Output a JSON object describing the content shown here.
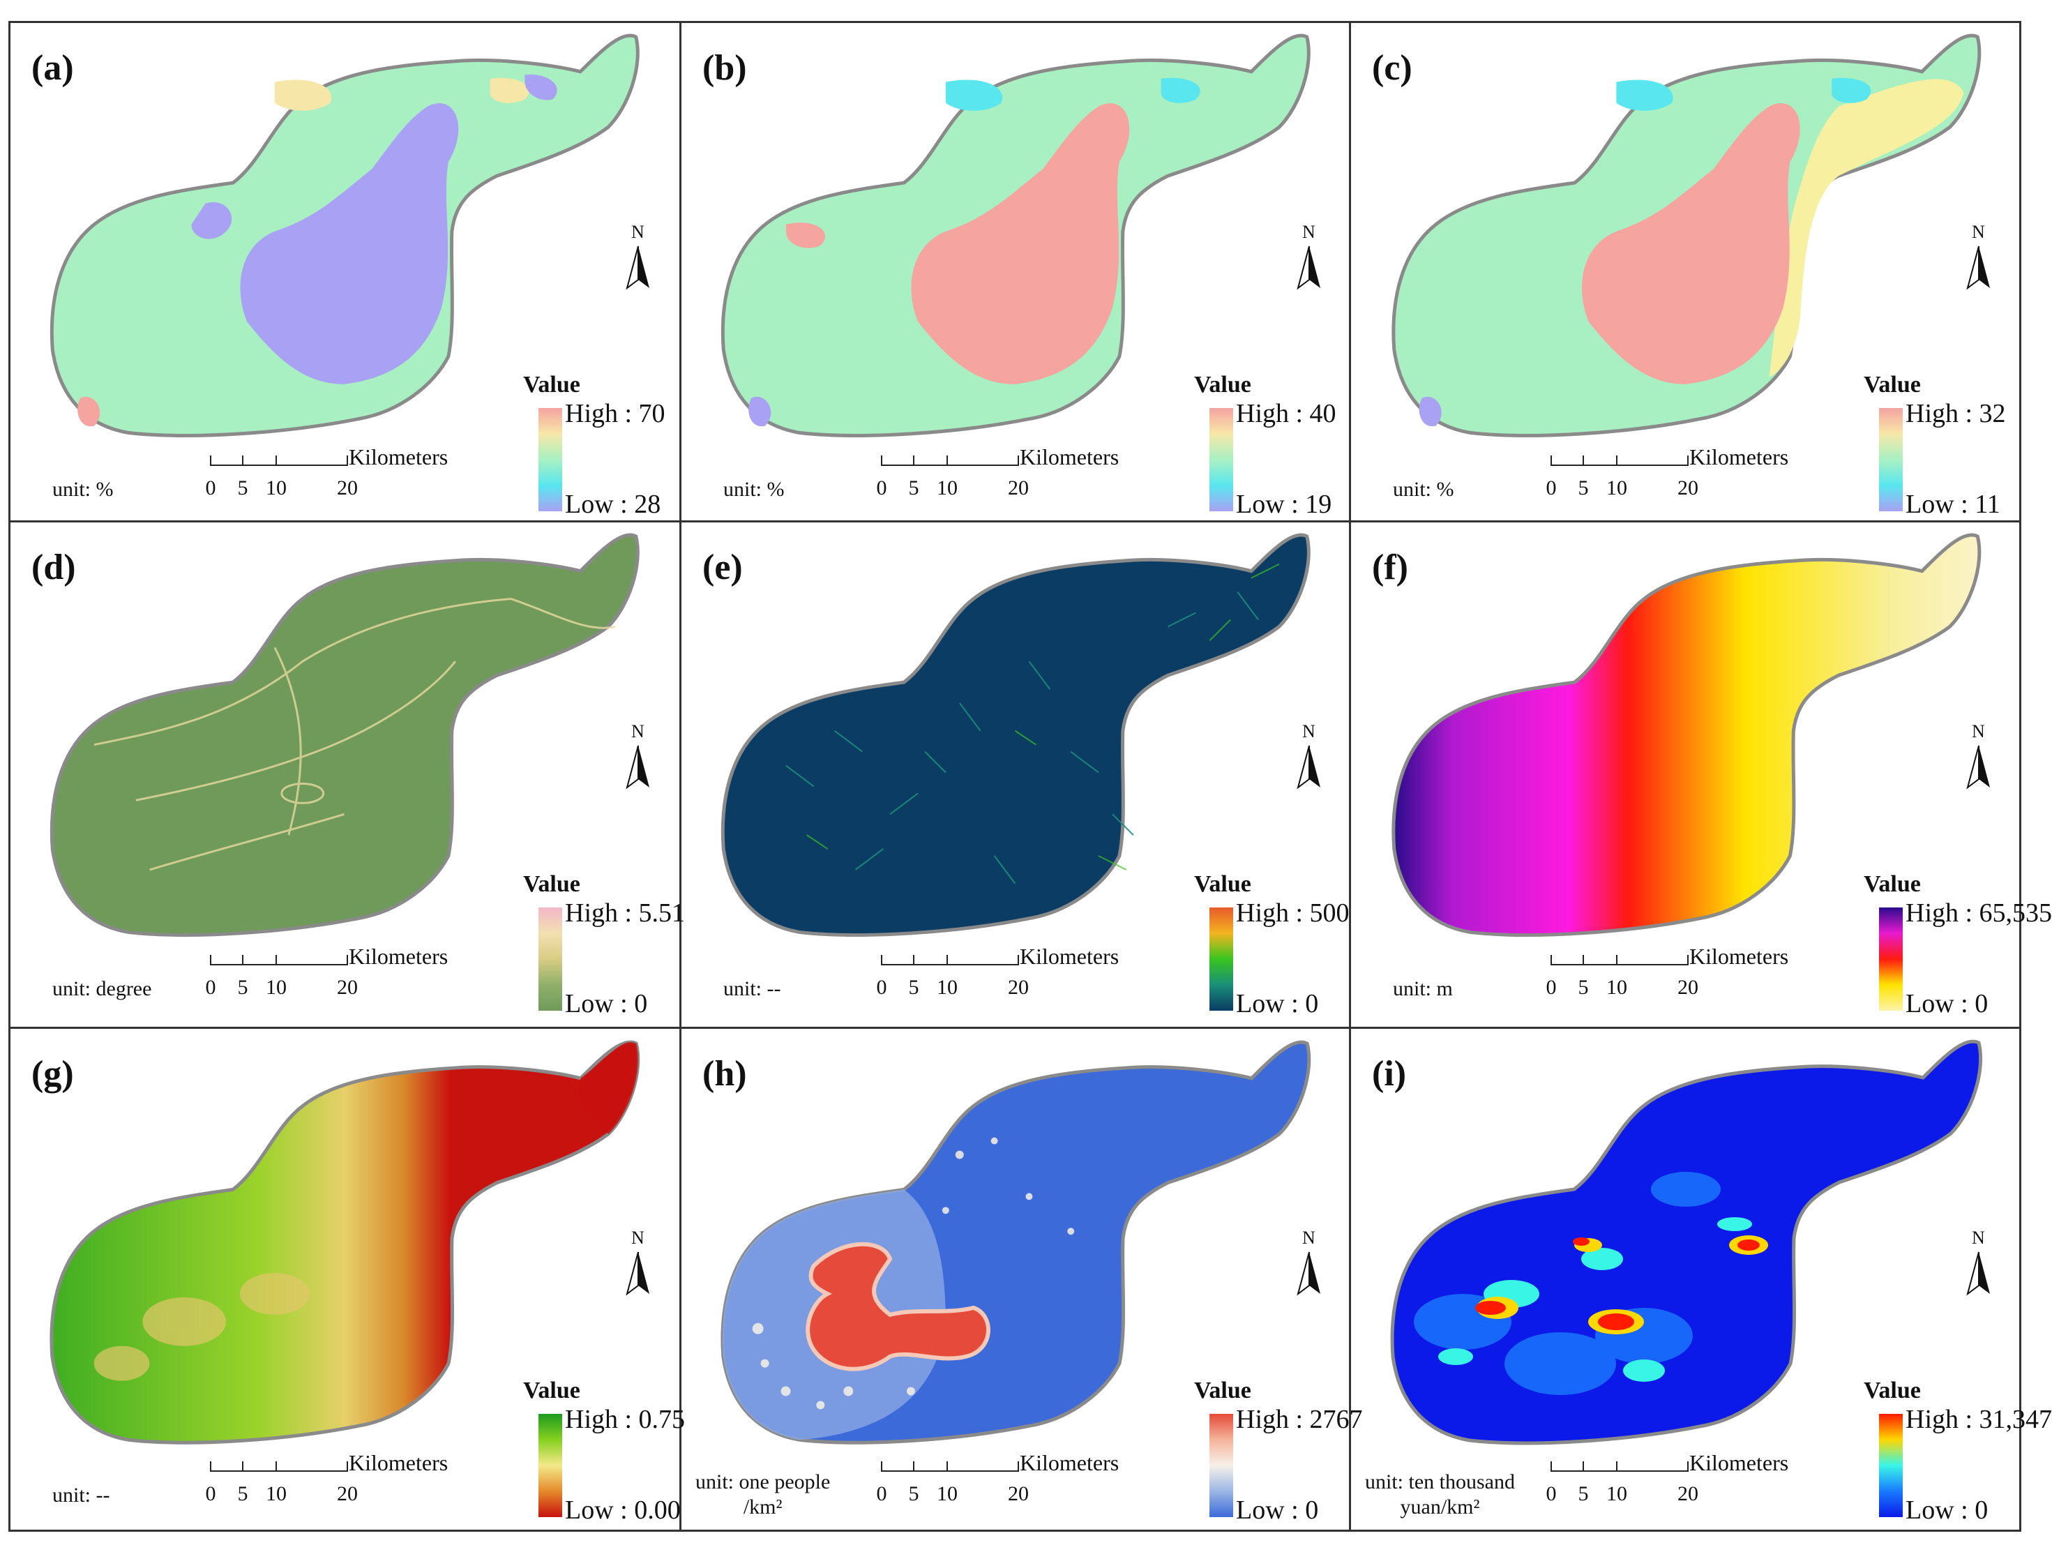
{
  "panels": [
    {
      "label": "(a)",
      "unit": "unit: %",
      "legend": {
        "title": "Value",
        "high": "High : 70",
        "low": "Low : 28"
      },
      "ramp": [
        "#f5a4a0",
        "#f6e7a8",
        "#a8f0c2",
        "#59e6ee",
        "#a9a2f4"
      ],
      "north": "N"
    },
    {
      "label": "(b)",
      "unit": "unit: %",
      "legend": {
        "title": "Value",
        "high": "High : 40",
        "low": "Low : 19"
      },
      "ramp": [
        "#f5a4a0",
        "#f6e7a8",
        "#a8f0c2",
        "#59e6ee",
        "#a9a2f4"
      ],
      "north": "N"
    },
    {
      "label": "(c)",
      "unit": "unit: %",
      "legend": {
        "title": "Value",
        "high": "High : 32",
        "low": "Low : 11"
      },
      "ramp": [
        "#f5a4a0",
        "#f6e7a8",
        "#a8f0c2",
        "#59e6ee",
        "#a9a2f4"
      ],
      "north": "N"
    },
    {
      "label": "(d)",
      "unit": "unit: degree",
      "legend": {
        "title": "Value",
        "high": "High : 5.51",
        "low": "Low : 0"
      },
      "ramp": [
        "#f2b7c9",
        "#f2e0b0",
        "#d9cc84",
        "#8fb06a",
        "#6f9a5a"
      ],
      "north": "N"
    },
    {
      "label": "(e)",
      "unit": "unit: --",
      "legend": {
        "title": "Value",
        "high": "High : 500",
        "low": "Low : 0"
      },
      "ramp": [
        "#e85a2a",
        "#f2b41f",
        "#38c51f",
        "#1a8f7a",
        "#0b3c63"
      ],
      "north": "N"
    },
    {
      "label": "(f)",
      "unit": "unit: m",
      "legend": {
        "title": "Value",
        "high": "High : 65,535",
        "low": "Low : 0"
      },
      "ramp": [
        "#2a0b8c",
        "#e81ad0",
        "#ff1a10",
        "#ffe400",
        "#fbf3a8"
      ],
      "north": "N"
    },
    {
      "label": "(g)",
      "unit": "unit: --",
      "legend": {
        "title": "Value",
        "high": "High : 0.75",
        "low": "Low : 0.00"
      },
      "ramp": [
        "#1f9a1f",
        "#86d01f",
        "#f3e98a",
        "#e58a2a",
        "#c8120e"
      ],
      "north": "N"
    },
    {
      "label": "(h)",
      "unit": "unit: one people",
      "unit2": "/km²",
      "legend": {
        "title": "Value",
        "high": "High : 2767",
        "low": "Low : 0"
      },
      "ramp": [
        "#e54a3a",
        "#f5b39a",
        "#f6f1e8",
        "#9cb6e6",
        "#3c6ad9"
      ],
      "north": "N"
    },
    {
      "label": "(i)",
      "unit": "unit: ten thousand",
      "unit2": "yuan/km²",
      "legend": {
        "title": "Value",
        "high": "High : 31,347",
        "low": "Low : 0"
      },
      "ramp": [
        "#ff1a00",
        "#ffd800",
        "#38f5e6",
        "#1a7bff",
        "#0b1ae8"
      ],
      "north": "N"
    }
  ],
  "scale_bar": {
    "title": "Kilometers",
    "ticks": [
      "0",
      "5",
      "10",
      "20"
    ]
  }
}
